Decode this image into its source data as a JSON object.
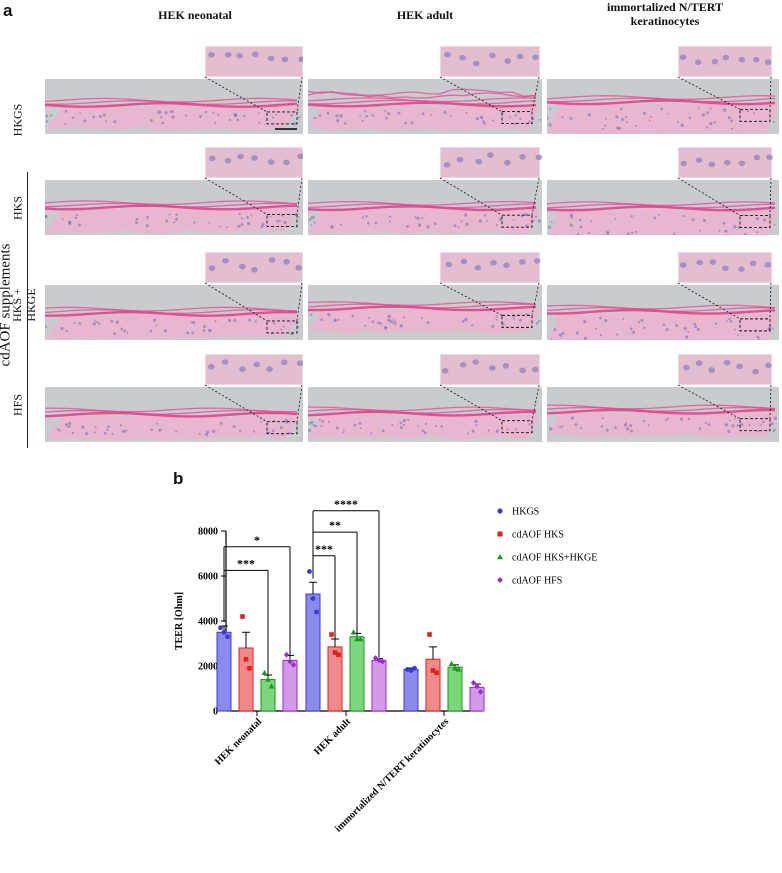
{
  "panels": {
    "a": {
      "letter": "a",
      "columns": [
        "HEK neonatal",
        "HEK adult",
        "immortalized  N/TERT\nkeratinocytes"
      ],
      "rows": [
        "HKGS",
        "HKS",
        "HKS +\nHKGE",
        "HFS"
      ],
      "group_label": "cdAOF supplements",
      "colors": {
        "background": "#c9ccce",
        "tissue": "#e6b7cf",
        "stratum": "#e8468f",
        "nuclei": "#7a6aa8"
      }
    },
    "b": {
      "letter": "b"
    }
  },
  "chart_data": {
    "type": "bar",
    "categories": [
      "HEK neonatal",
      "HEK adult",
      "immortalized N/TERT keratinocytes"
    ],
    "ylabel": "TEER [Ohm]",
    "ylim": [
      0,
      8000
    ],
    "yticks": [
      0,
      2000,
      4000,
      6000,
      8000
    ],
    "legend_position": "right",
    "series": [
      {
        "name": "HKGS",
        "color": "#3a3ad6",
        "fill": "#8a8aea",
        "marker": "circle",
        "values": [
          3500,
          5200,
          1850
        ],
        "errors": [
          280,
          520,
          60
        ],
        "points": [
          [
            3700,
            3500,
            3300
          ],
          [
            6200,
            5000,
            4400
          ],
          [
            1850,
            1800,
            1900
          ]
        ]
      },
      {
        "name": "cdAOF HKS",
        "color": "#e02020",
        "fill": "#f08a8a",
        "marker": "square",
        "values": [
          2800,
          2850,
          2300
        ],
        "errors": [
          700,
          350,
          550
        ],
        "points": [
          [
            4200,
            2300,
            1900
          ],
          [
            3400,
            2600,
            2500
          ],
          [
            3400,
            1800,
            1700
          ]
        ]
      },
      {
        "name": "cdAOF HKS+HKGE",
        "color": "#1a9a1a",
        "fill": "#7cd67c",
        "marker": "triangle",
        "values": [
          1400,
          3300,
          1950
        ],
        "errors": [
          200,
          150,
          100
        ],
        "points": [
          [
            1700,
            1400,
            1100
          ],
          [
            3500,
            3200,
            3200
          ],
          [
            2100,
            1900,
            1850
          ]
        ]
      },
      {
        "name": "cdAOF HFS",
        "color": "#9a2ad0",
        "fill": "#d49aea",
        "marker": "diamond",
        "values": [
          2250,
          2250,
          1050
        ],
        "errors": [
          220,
          80,
          150
        ],
        "points": [
          [
            2500,
            2200,
            2050
          ],
          [
            2350,
            2250,
            2200
          ],
          [
            1250,
            1100,
            850
          ]
        ]
      }
    ],
    "significance": [
      {
        "group": 0,
        "from": 0,
        "to": 3,
        "label": "*"
      },
      {
        "group": 0,
        "from": 0,
        "to": 2,
        "label": "***"
      },
      {
        "group": 1,
        "from": 0,
        "to": 3,
        "label": "****"
      },
      {
        "group": 1,
        "from": 0,
        "to": 2,
        "label": "**"
      },
      {
        "group": 1,
        "from": 0,
        "to": 1,
        "label": "***"
      }
    ]
  }
}
